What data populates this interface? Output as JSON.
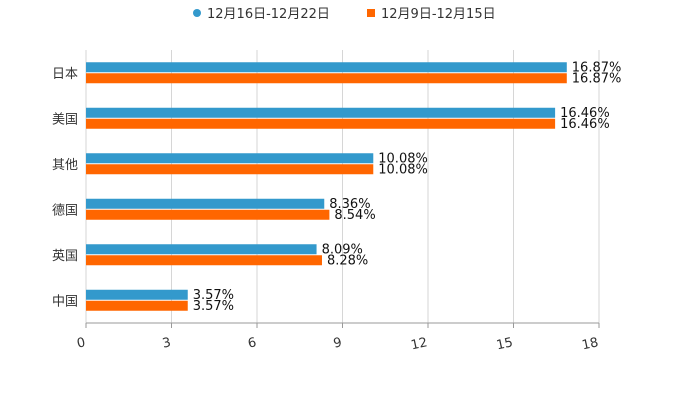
{
  "chart_data": {
    "type": "bar",
    "orientation": "horizontal",
    "categories": [
      "日本",
      "美国",
      "其他",
      "德国",
      "英国",
      "中国"
    ],
    "series": [
      {
        "name": "12月16日-12月22日",
        "color": "#3399cc",
        "values": [
          16.87,
          16.46,
          10.08,
          8.36,
          8.09,
          3.57
        ],
        "labels": [
          "16.87%",
          "16.46%",
          "10.08%",
          "8.36%",
          "8.09%",
          "3.57%"
        ]
      },
      {
        "name": "12月9日-12月15日",
        "color": "#ff6600",
        "values": [
          16.87,
          16.46,
          10.08,
          8.54,
          8.28,
          3.57
        ],
        "labels": [
          "16.87%",
          "16.46%",
          "10.08%",
          "8.54%",
          "8.28%",
          "3.57%"
        ]
      }
    ],
    "xlim": [
      0,
      18
    ],
    "xticks": [
      "0",
      "3",
      "6",
      "9",
      "12",
      "15",
      "18"
    ],
    "grid": true,
    "legend": "top-center"
  }
}
